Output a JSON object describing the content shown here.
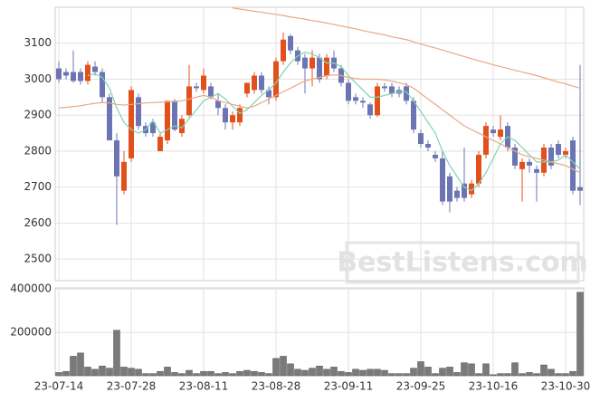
{
  "chart_data": [
    {
      "type": "candlestick",
      "up_color": "#e2501c",
      "down_color": "#6c74b4",
      "open": [
        3030,
        3020,
        3020,
        3020,
        2995,
        3035,
        3020,
        2950,
        2830,
        2690,
        2780,
        2950,
        2870,
        2880,
        2800,
        2830,
        2940,
        2850,
        2900,
        2980,
        2970,
        2980,
        2940,
        2920,
        2880,
        2880,
        2960,
        2970,
        3010,
        2970,
        2950,
        3050,
        3120,
        3080,
        3060,
        3030,
        3060,
        3010,
        3060,
        3030,
        2990,
        2950,
        2940,
        2930,
        2900,
        2980,
        2980,
        2970,
        2980,
        2940,
        2850,
        2820,
        2790,
        2780,
        2730,
        2690,
        2710,
        2680,
        2710,
        2790,
        2860,
        2840,
        2870,
        2810,
        2750,
        2770,
        2750,
        2740,
        2810,
        2820,
        2790,
        2830,
        2700
      ],
      "high": [
        3050,
        3030,
        3080,
        3030,
        3050,
        3050,
        3030,
        2960,
        2850,
        2800,
        2980,
        2960,
        2880,
        2890,
        2850,
        2940,
        2945,
        2900,
        3040,
        2990,
        3030,
        2990,
        2960,
        2930,
        2910,
        2930,
        2990,
        3020,
        3020,
        2980,
        3060,
        3130,
        3125,
        3090,
        3070,
        3080,
        3070,
        3070,
        3080,
        3040,
        3000,
        2960,
        2950,
        2935,
        2990,
        2990,
        2990,
        2980,
        2990,
        2950,
        2860,
        2830,
        2800,
        2800,
        2740,
        2700,
        2810,
        2720,
        2800,
        2880,
        2870,
        2900,
        2880,
        2820,
        2780,
        2780,
        2760,
        2820,
        2820,
        2830,
        2810,
        2840,
        3040
      ],
      "low": [
        2990,
        3000,
        2990,
        2985,
        2985,
        3010,
        2935,
        2830,
        2595,
        2680,
        2770,
        2860,
        2840,
        2840,
        2800,
        2820,
        2855,
        2840,
        2895,
        2965,
        2960,
        2945,
        2900,
        2860,
        2860,
        2870,
        2950,
        2960,
        2960,
        2930,
        2940,
        3040,
        3070,
        3040,
        2960,
        2980,
        2990,
        3000,
        3020,
        2980,
        2930,
        2930,
        2920,
        2890,
        2895,
        2965,
        2950,
        2950,
        2930,
        2850,
        2810,
        2800,
        2770,
        2650,
        2630,
        2660,
        2660,
        2670,
        2700,
        2780,
        2840,
        2830,
        2800,
        2750,
        2660,
        2740,
        2660,
        2730,
        2750,
        2780,
        2780,
        2680,
        2650
      ],
      "close": [
        3000,
        3010,
        2995,
        2995,
        3040,
        3020,
        2950,
        2830,
        2730,
        2770,
        2970,
        2870,
        2850,
        2850,
        2840,
        2940,
        2860,
        2890,
        2980,
        2975,
        3010,
        2950,
        2920,
        2880,
        2900,
        2920,
        2990,
        3010,
        2970,
        2950,
        3050,
        3110,
        3080,
        3050,
        3030,
        3060,
        3000,
        3060,
        3030,
        2990,
        2940,
        2940,
        2935,
        2900,
        2980,
        2975,
        2960,
        2960,
        2940,
        2860,
        2820,
        2810,
        2780,
        2660,
        2660,
        2670,
        2670,
        2710,
        2790,
        2870,
        2850,
        2860,
        2810,
        2760,
        2770,
        2760,
        2740,
        2810,
        2760,
        2790,
        2800,
        2690,
        2690
      ],
      "series": [
        {
          "name": "ma5",
          "color": "#7fd4b0",
          "values": [
            null,
            null,
            null,
            null,
            3010,
            3015,
            3005,
            2975,
            2920,
            2880,
            2860,
            2850,
            2860,
            2885,
            2850,
            2860,
            2870,
            2865,
            2890,
            2915,
            2940,
            2950,
            2960,
            2945,
            2925,
            2905,
            2915,
            2935,
            2955,
            2970,
            2990,
            3020,
            3045,
            3065,
            3075,
            3070,
            3060,
            3045,
            3045,
            3035,
            3010,
            2990,
            2970,
            2950,
            2950,
            2955,
            2960,
            2965,
            2965,
            2940,
            2910,
            2880,
            2850,
            2800,
            2760,
            2730,
            2700,
            2690,
            2710,
            2740,
            2780,
            2820,
            2840,
            2830,
            2810,
            2790,
            2770,
            2770,
            2770,
            2775,
            2790,
            2770,
            2750
          ]
        },
        {
          "name": "ma20",
          "color": "#e8a882",
          "values": [
            2920,
            2922,
            2924,
            2926,
            2930,
            2933,
            2935,
            2934,
            2930,
            2928,
            2930,
            2932,
            2934,
            2935,
            2936,
            2937,
            2938,
            2940,
            2945,
            2950,
            2955,
            2950,
            2940,
            2935,
            2930,
            2925,
            2920,
            2925,
            2935,
            2945,
            2955,
            2965,
            2975,
            2985,
            2995,
            3000,
            3005,
            3010,
            3012,
            3010,
            3005,
            3002,
            3000,
            3000,
            3000,
            2998,
            2995,
            2990,
            2985,
            2975,
            2960,
            2945,
            2930,
            2915,
            2900,
            2885,
            2870,
            2860,
            2850,
            2840,
            2830,
            2820,
            2810,
            2800,
            2790,
            2785,
            2780,
            2775,
            2770,
            2765,
            2760,
            2750,
            2740
          ]
        },
        {
          "name": "ma60",
          "color": "#e8a882",
          "values": [
            null,
            null,
            null,
            null,
            null,
            null,
            null,
            null,
            null,
            null,
            null,
            null,
            null,
            null,
            null,
            null,
            null,
            null,
            null,
            null,
            null,
            null,
            null,
            null,
            3198,
            3195,
            3192,
            3189,
            3186,
            3183,
            3180,
            3177,
            3173,
            3170,
            3167,
            3163,
            3160,
            3156,
            3152,
            3148,
            3144,
            3140,
            3135,
            3131,
            3127,
            3123,
            3118,
            3114,
            3110,
            3104,
            3098,
            3092,
            3087,
            3081,
            3075,
            3069,
            3063,
            3057,
            3051,
            3046,
            3040,
            3035,
            3030,
            3025,
            3020,
            3015,
            3010,
            3004,
            2998,
            2992,
            2987,
            2981,
            2975
          ]
        }
      ],
      "ylim": [
        2440,
        3200
      ],
      "yticks": [
        2500,
        2600,
        2700,
        2800,
        2900,
        3000,
        3100
      ],
      "grid": true,
      "watermark": "BestListens.com"
    },
    {
      "type": "bar",
      "color": "#7a7a7a",
      "categories": [
        "23-07-14",
        null,
        null,
        null,
        null,
        null,
        null,
        null,
        null,
        null,
        "23-07-28",
        null,
        null,
        null,
        null,
        null,
        null,
        null,
        null,
        null,
        "23-08-11",
        null,
        null,
        null,
        null,
        null,
        null,
        null,
        null,
        null,
        "23-08-28",
        null,
        null,
        null,
        null,
        null,
        null,
        null,
        null,
        null,
        "23-09-11",
        null,
        null,
        null,
        null,
        null,
        null,
        null,
        null,
        null,
        "23-09-25",
        null,
        null,
        null,
        null,
        null,
        null,
        null,
        null,
        null,
        "23-10-16",
        null,
        null,
        null,
        null,
        null,
        null,
        null,
        null,
        null,
        "23-10-30",
        null,
        null
      ],
      "values": [
        15000,
        20000,
        90000,
        105000,
        40000,
        30000,
        45000,
        35000,
        210000,
        40000,
        35000,
        30000,
        10000,
        10000,
        20000,
        40000,
        15000,
        10000,
        25000,
        10000,
        20000,
        20000,
        10000,
        15000,
        10000,
        20000,
        25000,
        20000,
        15000,
        10000,
        80000,
        90000,
        55000,
        30000,
        25000,
        35000,
        45000,
        30000,
        40000,
        20000,
        15000,
        30000,
        25000,
        30000,
        30000,
        25000,
        10000,
        10000,
        10000,
        35000,
        65000,
        40000,
        10000,
        35000,
        40000,
        15000,
        60000,
        55000,
        10000,
        55000,
        5000,
        10000,
        10000,
        60000,
        10000,
        15000,
        10000,
        50000,
        30000,
        10000,
        10000,
        20000,
        385000
      ],
      "ylim": [
        0,
        405000
      ],
      "yticks": [
        200000,
        400000
      ],
      "grid": true
    }
  ]
}
